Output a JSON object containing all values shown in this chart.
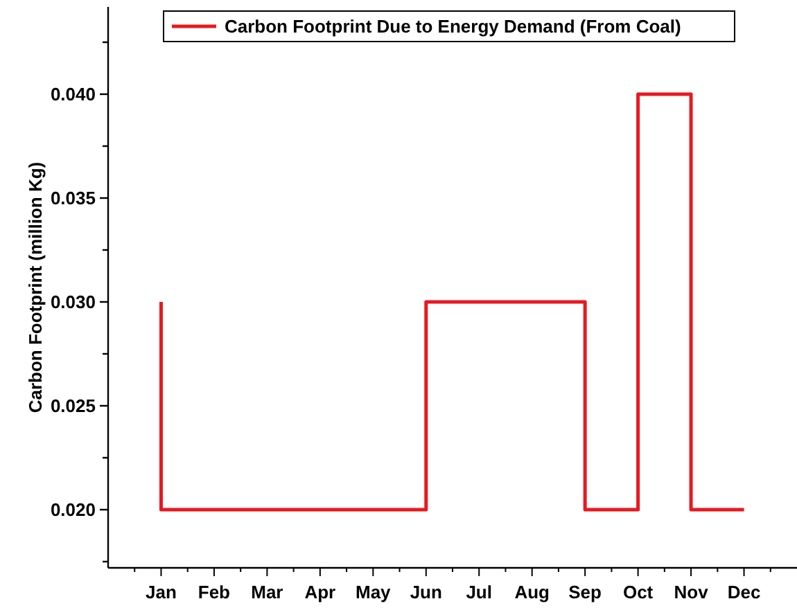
{
  "chart_data": {
    "type": "step",
    "ylabel": "Carbon Footprint (million Kg)",
    "categories": [
      "Jan",
      "Feb",
      "Mar",
      "Apr",
      "May",
      "Jun",
      "Jul",
      "Aug",
      "Sep",
      "Oct",
      "Nov",
      "Dec"
    ],
    "series": [
      {
        "name": "Carbon Footprint Due to Energy Demand (From Coal)",
        "color": "#e8191f",
        "values": [
          0.03,
          0.02,
          0.02,
          0.02,
          0.02,
          0.02,
          0.03,
          0.03,
          0.03,
          0.02,
          0.04,
          0.02
        ]
      }
    ],
    "ylim": [
      0.0172,
      0.0442
    ],
    "yticks": [
      {
        "value": 0.02,
        "label": "0.020"
      },
      {
        "value": 0.025,
        "label": "0.025"
      },
      {
        "value": 0.03,
        "label": "0.030"
      },
      {
        "value": 0.035,
        "label": "0.035"
      },
      {
        "value": 0.04,
        "label": "0.040"
      }
    ],
    "legend": "top left",
    "grid": false
  }
}
